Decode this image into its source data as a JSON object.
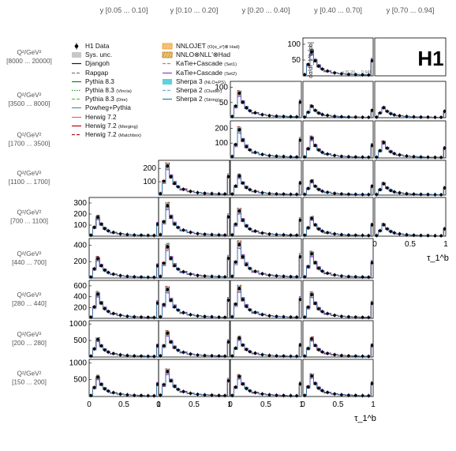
{
  "badge": "H1",
  "chart_data": {
    "type": "line",
    "title": "",
    "ylabel": "dσ/dτ_1^b [pb]",
    "xlabel": "τ_1^b",
    "col_labels": [
      "y  [0.05 ... 0.10]",
      "y  [0.10 ... 0.20]",
      "y  [0.20 ... 0.40]",
      "y  [0.40 ... 0.70]",
      "y  [0.70 ... 0.94]"
    ],
    "row_labels": [
      {
        "q": "Q²/GeV²",
        "range": "[8000 ... 20000]"
      },
      {
        "q": "Q²/GeV²",
        "range": "[3500 ... 8000]"
      },
      {
        "q": "Q²/GeV²",
        "range": "[1700 ... 3500]"
      },
      {
        "q": "Q²/GeV²",
        "range": "[1100 ... 1700]"
      },
      {
        "q": "Q²/GeV²",
        "range": "[700 ... 1100]"
      },
      {
        "q": "Q²/GeV²",
        "range": "[440 ... 700]"
      },
      {
        "q": "Q²/GeV²",
        "range": "[280 ... 440]"
      },
      {
        "q": "Q²/GeV²",
        "range": "[200 ... 280]"
      },
      {
        "q": "Q²/GeV²",
        "range": "[150 ... 200]"
      }
    ],
    "x_ticks": [
      "0",
      "0.5",
      "1"
    ],
    "inner_label": "y [0.20 ... 0.94]",
    "xlim": [
      0,
      1
    ],
    "bins": [
      0.0,
      0.05,
      0.1,
      0.15,
      0.2,
      0.25,
      0.3,
      0.4,
      0.5,
      0.6,
      0.7,
      0.8,
      0.9,
      0.97,
      1.0
    ],
    "shape": [
      0.05,
      0.45,
      0.95,
      0.6,
      0.38,
      0.27,
      0.19,
      0.12,
      0.08,
      0.06,
      0.05,
      0.04,
      0.035,
      0.6
    ],
    "panels": [
      {
        "row": 0,
        "col": 3,
        "scale": 80,
        "ylim": [
          0,
          120
        ],
        "yticks": [
          "50",
          "100"
        ],
        "ytickvals": [
          50,
          100
        ],
        "ylabel_shown": true,
        "inner_label": true
      },
      {
        "row": 0,
        "col": 4,
        "scale": 0,
        "ylim": [
          0,
          120
        ],
        "yticks": [],
        "ytickvals": []
      },
      {
        "row": 1,
        "col": 2,
        "scale": 85,
        "ylim": [
          0,
          120
        ],
        "yticks": [
          "50",
          "100"
        ],
        "ytickvals": [
          50,
          100
        ]
      },
      {
        "row": 1,
        "col": 3,
        "scale": 40,
        "ylim": [
          0,
          120
        ],
        "yticks": [],
        "ytickvals": []
      },
      {
        "row": 1,
        "col": 4,
        "scale": 35,
        "ylim": [
          0,
          120
        ],
        "yticks": [],
        "ytickvals": []
      },
      {
        "row": 2,
        "col": 2,
        "scale": 200,
        "ylim": [
          0,
          250
        ],
        "yticks": [
          "100",
          "200"
        ],
        "ytickvals": [
          100,
          200
        ]
      },
      {
        "row": 2,
        "col": 3,
        "scale": 140,
        "ylim": [
          0,
          250
        ],
        "yticks": [],
        "ytickvals": []
      },
      {
        "row": 2,
        "col": 4,
        "scale": 110,
        "ylim": [
          0,
          250
        ],
        "yticks": [],
        "ytickvals": []
      },
      {
        "row": 3,
        "col": 1,
        "scale": 230,
        "ylim": [
          0,
          260
        ],
        "yticks": [
          "100",
          "200"
        ],
        "ytickvals": [
          100,
          200
        ]
      },
      {
        "row": 3,
        "col": 2,
        "scale": 150,
        "ylim": [
          0,
          260
        ],
        "yticks": [],
        "ytickvals": []
      },
      {
        "row": 3,
        "col": 3,
        "scale": 110,
        "ylim": [
          0,
          260
        ],
        "yticks": [],
        "ytickvals": []
      },
      {
        "row": 3,
        "col": 4,
        "scale": 90,
        "ylim": [
          0,
          260
        ],
        "yticks": [],
        "ytickvals": []
      },
      {
        "row": 4,
        "col": 0,
        "scale": 180,
        "ylim": [
          0,
          350
        ],
        "yticks": [
          "100",
          "200",
          "300"
        ],
        "ytickvals": [
          100,
          200,
          300
        ]
      },
      {
        "row": 4,
        "col": 1,
        "scale": 290,
        "ylim": [
          0,
          350
        ],
        "yticks": [],
        "ytickvals": []
      },
      {
        "row": 4,
        "col": 2,
        "scale": 240,
        "ylim": [
          0,
          350
        ],
        "yticks": [],
        "ytickvals": []
      },
      {
        "row": 4,
        "col": 3,
        "scale": 170,
        "ylim": [
          0,
          350
        ],
        "yticks": [],
        "ytickvals": []
      },
      {
        "row": 4,
        "col": 4,
        "scale": 110,
        "ylim": [
          0,
          350
        ],
        "yticks": [],
        "ytickvals": []
      },
      {
        "row": 5,
        "col": 0,
        "scale": 250,
        "ylim": [
          0,
          480
        ],
        "yticks": [
          "200",
          "400"
        ],
        "ytickvals": [
          200,
          400
        ]
      },
      {
        "row": 5,
        "col": 1,
        "scale": 400,
        "ylim": [
          0,
          480
        ],
        "yticks": [],
        "ytickvals": []
      },
      {
        "row": 5,
        "col": 2,
        "scale": 430,
        "ylim": [
          0,
          480
        ],
        "yticks": [],
        "ytickvals": []
      },
      {
        "row": 5,
        "col": 3,
        "scale": 310,
        "ylim": [
          0,
          480
        ],
        "yticks": [],
        "ytickvals": []
      },
      {
        "row": 6,
        "col": 0,
        "scale": 470,
        "ylim": [
          0,
          700
        ],
        "yticks": [
          "200",
          "400",
          "600"
        ],
        "ytickvals": [
          200,
          400,
          600
        ]
      },
      {
        "row": 6,
        "col": 1,
        "scale": 560,
        "ylim": [
          0,
          700
        ],
        "yticks": [],
        "ytickvals": []
      },
      {
        "row": 6,
        "col": 2,
        "scale": 580,
        "ylim": [
          0,
          700
        ],
        "yticks": [],
        "ytickvals": []
      },
      {
        "row": 6,
        "col": 3,
        "scale": 460,
        "ylim": [
          0,
          700
        ],
        "yticks": [],
        "ytickvals": []
      },
      {
        "row": 7,
        "col": 0,
        "scale": 560,
        "ylim": [
          0,
          1100
        ],
        "yticks": [
          "500",
          "1000"
        ],
        "ytickvals": [
          500,
          1000
        ]
      },
      {
        "row": 7,
        "col": 1,
        "scale": 760,
        "ylim": [
          0,
          1100
        ],
        "yticks": [],
        "ytickvals": []
      },
      {
        "row": 7,
        "col": 2,
        "scale": 600,
        "ylim": [
          0,
          1100
        ],
        "yticks": [],
        "ytickvals": []
      },
      {
        "row": 7,
        "col": 3,
        "scale": 580,
        "ylim": [
          0,
          1100
        ],
        "yticks": [],
        "ytickvals": []
      },
      {
        "row": 8,
        "col": 0,
        "scale": 600,
        "ylim": [
          0,
          1100
        ],
        "yticks": [
          "500",
          "1000"
        ],
        "ytickvals": [
          500,
          1000
        ]
      },
      {
        "row": 8,
        "col": 1,
        "scale": 780,
        "ylim": [
          0,
          1100
        ],
        "yticks": [],
        "ytickvals": []
      },
      {
        "row": 8,
        "col": 2,
        "scale": 620,
        "ylim": [
          0,
          1100
        ],
        "yticks": [],
        "ytickvals": []
      },
      {
        "row": 8,
        "col": 3,
        "scale": 640,
        "ylim": [
          0,
          1100
        ],
        "yticks": [],
        "ytickvals": []
      }
    ],
    "series": [
      {
        "name": "H1 Data",
        "kind": "data",
        "color": "#000000"
      },
      {
        "name": "Sys. unc.",
        "kind": "band",
        "color": "#c8c8c8"
      },
      {
        "name": "Djangoh",
        "kind": "line",
        "color": "#1a1a1a",
        "dash": "",
        "dev": 0.02
      },
      {
        "name": "Rapgap",
        "kind": "line",
        "color": "#7a7a7a",
        "dash": "4,2",
        "dev": -0.05
      },
      {
        "name": "Pythia 8.3",
        "kind": "line",
        "color": "#1c7c1c",
        "dash": "",
        "dev": 0.06
      },
      {
        "name": "Pythia 8.3",
        "tag": "(Vincia)",
        "kind": "line",
        "color": "#2ca02c",
        "dash": "1.5,1.5",
        "dev": -0.07
      },
      {
        "name": "Pythia 8.3",
        "tag": "(Dire)",
        "kind": "line",
        "color": "#5fbf3f",
        "dash": "4,2",
        "dev": 0.09
      },
      {
        "name": "Powheg+Pythia",
        "kind": "line",
        "color": "#3c9c9c",
        "dash": "",
        "dev": 0.04
      },
      {
        "name": "Herwig 7.2",
        "kind": "line",
        "color": "#e06666",
        "dash": "",
        "dev": -0.03
      },
      {
        "name": "Herwig 7.2",
        "tag": "(Merging)",
        "kind": "line",
        "color": "#c00000",
        "dash": "",
        "dev": -0.08
      },
      {
        "name": "Herwig 7.2",
        "tag": "(Matchbox)",
        "kind": "line",
        "color": "#a01818",
        "dash": "4,2",
        "dev": 0.11
      },
      {
        "name": "NNLOJET",
        "tag": "(O(α_s³)⊗ Had)",
        "kind": "hatch",
        "color": "#f0a030"
      },
      {
        "name": "NNLO⊗NLL'⊗Had",
        "kind": "hatch2",
        "color": "#c08020"
      },
      {
        "name": "KaTie+Cascade",
        "tag": "(Set1)",
        "kind": "line",
        "color": "#cc66cc",
        "dash": "4,2",
        "dev": 0.14
      },
      {
        "name": "KaTie+Cascade",
        "tag": "(Set2)",
        "kind": "line",
        "color": "#8a3fc0",
        "dash": "",
        "dev": 0.18
      },
      {
        "name": "Sherpa 3",
        "tag": "(NLO+PS)",
        "kind": "band2",
        "color": "#5ed0e0"
      },
      {
        "name": "Sherpa 2",
        "tag": "(Cluster)",
        "kind": "line",
        "color": "#6aa8d8",
        "dash": "4,2",
        "dev": 0.07
      },
      {
        "name": "Sherpa 2",
        "tag": "(String)",
        "kind": "line",
        "color": "#2a7aa8",
        "dash": "",
        "dev": -0.04
      }
    ]
  }
}
